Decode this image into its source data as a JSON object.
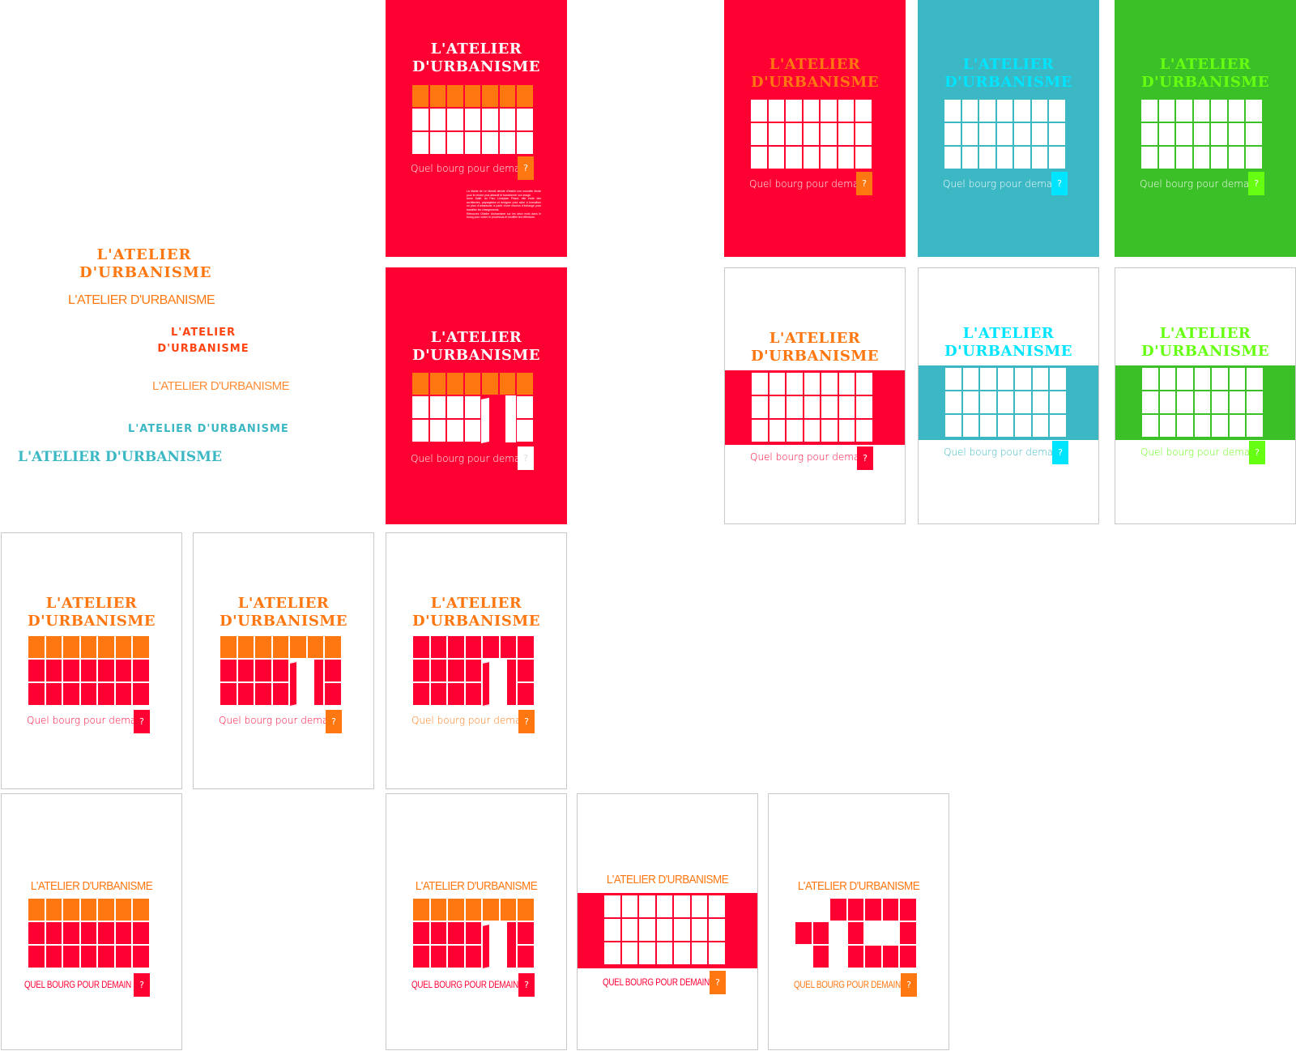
{
  "colors": {
    "red": "#ff0033",
    "orange": "#ff7711",
    "cyan": "#00e5ff",
    "teal": "#3bb8c4",
    "green": "#3cc028",
    "lime": "#66ff11",
    "white": "#ffffff",
    "brown": "#b22222"
  },
  "title_line1": "L'ATELIER",
  "title_line2": "D'URBANISME",
  "title_full": "L'ATELIER D'URBANISME",
  "tagline": "Quel bourg pour demain",
  "tagline_caps": "QUEL BOURG POUR DEMAIN",
  "question_mark": "?",
  "paragraph": [
    "La Mairie de Le Mesnil décide d'établir une nouvelle étude pour le rendre plus attractif et transformer son image.",
    "Anne Sallé, du Parc Lüneplan Pinsot, elle invite des architectes, paysagistes et designer pour aider à formaliser un plan d'urbanisme à partir d'une réunion d'échange pour travailler les changements.",
    "Retrouvez l'Atelier d'urbanisme sur les deux mois dans le bourg pour suivre le processus et modifier les réflexions."
  ]
}
